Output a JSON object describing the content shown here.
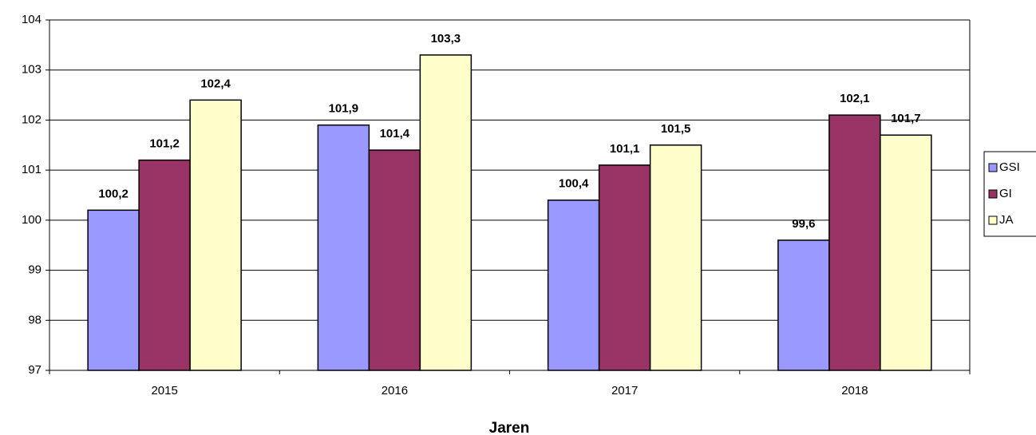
{
  "chart_data": {
    "type": "bar",
    "x_label": "Jaren",
    "categories": [
      "2015",
      "2016",
      "2017",
      "2018"
    ],
    "series": [
      {
        "name": "GSI",
        "color": "#9999ff",
        "values": [
          100.2,
          101.9,
          100.4,
          99.6
        ],
        "value_labels": [
          "100,2",
          "101,9",
          "100,4",
          "99,6"
        ]
      },
      {
        "name": "GI",
        "color": "#993366",
        "values": [
          101.2,
          101.4,
          101.1,
          102.1
        ],
        "value_labels": [
          "101,2",
          "101,4",
          "101,1",
          "102,1"
        ]
      },
      {
        "name": "JA",
        "color": "#ffffcc",
        "values": [
          102.4,
          103.3,
          101.5,
          101.7
        ],
        "value_labels": [
          "102,4",
          "103,3",
          "101,5",
          "101,7"
        ]
      }
    ],
    "ylim": [
      97,
      104
    ],
    "yticks": [
      97,
      98,
      99,
      100,
      101,
      102,
      103,
      104
    ],
    "grid": true,
    "legend": "right"
  }
}
